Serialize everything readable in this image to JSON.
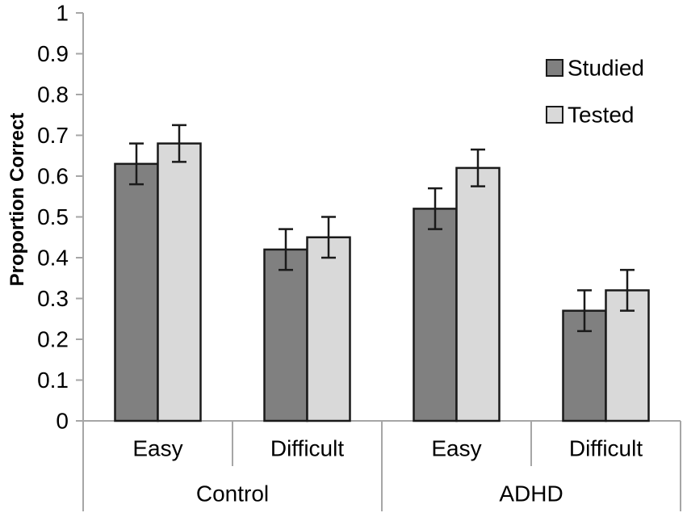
{
  "chart_data": {
    "type": "bar",
    "title": "",
    "ylabel": "Proportion Correct",
    "xlabel": "",
    "ylim": [
      0,
      1
    ],
    "ytick_step": 0.1,
    "ytick_labels": [
      "0",
      "0.1",
      "0.2",
      "0.3",
      "0.4",
      "0.5",
      "0.6",
      "0.7",
      "0.8",
      "0.9",
      "1"
    ],
    "grid": false,
    "legend_position": "top-right",
    "categories": [
      "Easy",
      "Difficult",
      "Easy",
      "Difficult"
    ],
    "groups": [
      {
        "label": "Control",
        "span": 2
      },
      {
        "label": "ADHD",
        "span": 2
      }
    ],
    "series": [
      {
        "name": "Studied",
        "color": "#808080",
        "values": [
          0.63,
          0.42,
          0.52,
          0.27
        ],
        "errors": [
          0.05,
          0.05,
          0.05,
          0.05
        ]
      },
      {
        "name": "Tested",
        "color": "#d9d9d9",
        "values": [
          0.68,
          0.45,
          0.62,
          0.32
        ],
        "errors": [
          0.045,
          0.05,
          0.045,
          0.05
        ]
      }
    ]
  },
  "style": {
    "axis_color": "#a6a6a6",
    "bar_border_color": "#1a1a1a",
    "error_bar_color": "#1a1a1a",
    "text_color": "#000000",
    "background": "#ffffff"
  }
}
